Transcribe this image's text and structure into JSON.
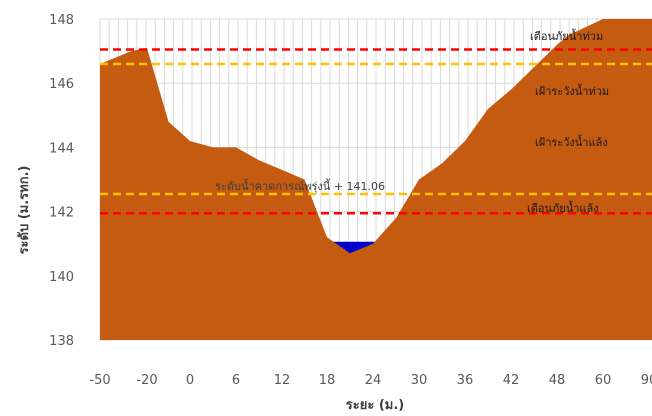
{
  "chart_data": {
    "type": "area",
    "xlabel": "ระยะ (ม.)",
    "ylabel": "ระดับ (ม.รทก.)",
    "ylim": [
      138,
      148
    ],
    "yticks": [
      138,
      140,
      142,
      144,
      146,
      148
    ],
    "x_tick_labels": [
      "-50",
      "-20",
      "0",
      "6",
      "12",
      "18",
      "24",
      "30",
      "36",
      "42",
      "48",
      "60",
      "90"
    ],
    "grid": true,
    "profile": {
      "x": [
        "-50",
        "-40",
        "-30",
        "-20",
        "-10",
        "0",
        "3",
        "6",
        "9",
        "12",
        "15",
        "18",
        "21",
        "24",
        "27",
        "30",
        "33",
        "36",
        "39",
        "42",
        "45",
        "48",
        "51",
        "60",
        "90"
      ],
      "y": [
        146.6,
        146.8,
        147.0,
        147.1,
        144.8,
        144.2,
        144.0,
        144.0,
        143.6,
        143.3,
        143.0,
        141.2,
        140.7,
        141.0,
        141.8,
        143.0,
        143.5,
        144.2,
        145.2,
        145.8,
        146.5,
        147.2,
        147.5,
        148.0,
        148.0
      ],
      "color": "#c55a11"
    },
    "water": {
      "level": 141.06,
      "color": "#0000cc"
    },
    "reference_lines": [
      {
        "label": "เตือนภัยน้ำท่วม",
        "y": 147.05,
        "color": "#ff0000"
      },
      {
        "label": "เฝ้าระวังน้ำท่วม",
        "y": 146.6,
        "color": "#ffc000"
      },
      {
        "label": "เฝ้าระวังน้ำแล้ง",
        "y": 142.55,
        "color": "#ffc000"
      },
      {
        "label": "เตือนภัยน้ำแล้ง",
        "y": 141.95,
        "color": "#ff0000"
      }
    ],
    "annotations": [
      {
        "text": "เตือนภัยน้ำท่วม"
      },
      {
        "text": "เฝ้าระวังน้ำท่วม"
      },
      {
        "text": "เฝ้าระวังน้ำแล้ง"
      },
      {
        "text": "ระดับน้ำคาดการณ์พรุ่งนี้ + 141.06"
      },
      {
        "text": "เตือนภัยน้ำแล้ง"
      }
    ]
  }
}
